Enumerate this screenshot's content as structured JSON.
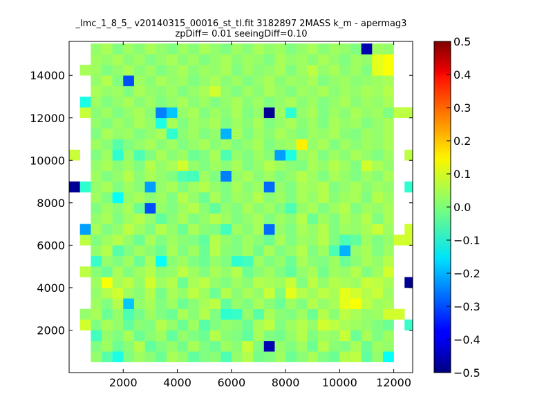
{
  "chart_data": {
    "type": "heatmap",
    "title": "_lmc_1_8_5_ v20140315_00016_st_tl.fit 3182897 2MASS k_m - apermag3",
    "subtitle": "zpDiff= 0.01 seeingDiff=0.10",
    "xlim": [
      0,
      12700
    ],
    "ylim": [
      0,
      15600
    ],
    "x_ticks": [
      "2000",
      "4000",
      "6000",
      "8000",
      "10000",
      "12000"
    ],
    "y_ticks": [
      "2000",
      "4000",
      "6000",
      "8000",
      "10000",
      "12000",
      "14000"
    ],
    "colorbar": {
      "colormap": "jet",
      "vmin": -0.5,
      "vmax": 0.5,
      "ticks": [
        "0.5",
        "0.4",
        "0.3",
        "0.2",
        "0.1",
        "0.0",
        "−0.1",
        "−0.2",
        "−0.3",
        "−0.4",
        "−0.5"
      ]
    },
    "grid": {
      "x_start": 0,
      "cell_width": 400,
      "n_cols": 32,
      "y_start": 0,
      "cell_height": 500,
      "n_rows": 31,
      "rows_bottom_to_top": [
        [
          null,
          null,
          null,
          null,
          null,
          null,
          null,
          null,
          null,
          null,
          null,
          null,
          null,
          null,
          null,
          null,
          null,
          null,
          null,
          null,
          null,
          null,
          null,
          null,
          null,
          null,
          null,
          null,
          null,
          null,
          null,
          null
        ],
        [
          null,
          null,
          0.02,
          -0.04,
          -0.1,
          0.0,
          0.03,
          0.01,
          -0.02,
          0.04,
          0.02,
          -0.03,
          0.0,
          0.01,
          -0.05,
          0.02,
          0.05,
          -0.01,
          0.0,
          0.03,
          -0.02,
          0.01,
          0.04,
          0.0,
          -0.02,
          0.05,
          0.06,
          -0.03,
          0.02,
          -0.12,
          null,
          null
        ],
        [
          null,
          null,
          0.0,
          0.03,
          -0.02,
          0.01,
          0.05,
          -0.03,
          0.0,
          0.02,
          -0.01,
          0.04,
          0.0,
          -0.02,
          0.03,
          0.01,
          0.07,
          0.0,
          -0.45,
          0.02,
          0.0,
          0.03,
          -0.02,
          0.05,
          0.01,
          0.0,
          0.04,
          -0.02,
          0.03,
          0.02,
          null,
          null
        ],
        [
          null,
          null,
          -0.06,
          0.02,
          0.0,
          0.04,
          -0.02,
          0.01,
          0.03,
          -0.03,
          0.02,
          0.0,
          -0.02,
          0.05,
          0.01,
          0.0,
          -0.03,
          0.04,
          0.0,
          -0.01,
          0.02,
          0.05,
          0.0,
          0.03,
          0.02,
          0.07,
          -0.02,
          0.04,
          0.0,
          0.03,
          null,
          null
        ],
        [
          null,
          0.08,
          0.0,
          0.04,
          0.02,
          -0.03,
          0.01,
          0.0,
          0.05,
          0.02,
          -0.02,
          0.03,
          -0.04,
          0.0,
          0.02,
          0.01,
          -0.02,
          0.04,
          0.06,
          0.0,
          0.03,
          0.05,
          0.02,
          0.08,
          0.06,
          0.04,
          0.03,
          0.02,
          0.0,
          -0.02,
          null,
          -0.07
        ],
        [
          null,
          0.02,
          0.04,
          -0.02,
          0.02,
          -0.05,
          -0.01,
          0.03,
          0.0,
          -0.02,
          0.04,
          0.01,
          0.05,
          0.0,
          -0.08,
          -0.07,
          0.02,
          -0.04,
          0.04,
          0.01,
          0.0,
          0.03,
          -0.02,
          0.05,
          0.01,
          0.06,
          0.04,
          0.02,
          0.03,
          0.08,
          0.08,
          null
        ],
        [
          null,
          null,
          0.03,
          0.0,
          0.05,
          -0.18,
          0.02,
          0.04,
          0.0,
          0.03,
          -0.02,
          0.01,
          0.04,
          0.06,
          -0.03,
          0.02,
          0.0,
          0.04,
          0.01,
          -0.02,
          0.03,
          0.0,
          0.05,
          0.02,
          0.04,
          0.1,
          0.12,
          0.06,
          0.03,
          0.04,
          null,
          null
        ],
        [
          null,
          null,
          0.02,
          0.05,
          0.08,
          0.03,
          0.01,
          0.05,
          -0.01,
          0.04,
          0.02,
          0.06,
          0.03,
          -0.02,
          0.05,
          0.01,
          0.04,
          0.02,
          0.07,
          0.0,
          0.1,
          0.05,
          0.03,
          0.06,
          0.04,
          0.1,
          0.08,
          0.05,
          0.07,
          0.03,
          null,
          null
        ],
        [
          null,
          null,
          0.03,
          0.12,
          0.04,
          0.06,
          0.02,
          0.08,
          0.03,
          0.05,
          -0.02,
          0.04,
          0.06,
          0.02,
          0.0,
          0.03,
          0.01,
          0.05,
          0.04,
          0.03,
          0.07,
          0.0,
          0.06,
          0.02,
          0.05,
          0.04,
          0.03,
          0.07,
          0.06,
          0.04,
          null,
          -0.48
        ],
        [
          null,
          0.06,
          0.01,
          -0.02,
          0.04,
          0.0,
          0.03,
          0.05,
          0.01,
          0.02,
          0.06,
          0.03,
          0.0,
          0.04,
          0.02,
          0.05,
          -0.02,
          0.01,
          0.03,
          0.0,
          -0.03,
          0.02,
          0.04,
          -0.01,
          0.03,
          0.02,
          0.05,
          0.0,
          0.03,
          0.08,
          null,
          null
        ],
        [
          null,
          null,
          -0.07,
          0.02,
          0.0,
          0.03,
          -0.02,
          0.04,
          -0.12,
          0.01,
          0.03,
          0.0,
          -0.02,
          0.02,
          0.0,
          -0.08,
          -0.06,
          0.03,
          0.0,
          0.02,
          -0.02,
          0.04,
          0.01,
          0.0,
          0.03,
          -0.02,
          0.01,
          0.04,
          0.02,
          0.05,
          null,
          null
        ],
        [
          null,
          null,
          0.02,
          0.05,
          -0.04,
          0.0,
          0.03,
          0.01,
          -0.02,
          0.04,
          0.0,
          0.03,
          -0.02,
          0.05,
          0.01,
          0.0,
          0.03,
          -0.01,
          0.04,
          0.0,
          0.02,
          0.05,
          0.0,
          0.03,
          -0.05,
          -0.2,
          0.02,
          0.04,
          0.0,
          0.03,
          null,
          null
        ],
        [
          null,
          0.06,
          0.0,
          0.03,
          0.05,
          0.02,
          -0.02,
          0.04,
          0.0,
          0.03,
          0.01,
          0.0,
          -0.03,
          0.05,
          0.02,
          0.0,
          0.03,
          0.01,
          -0.02,
          0.04,
          0.0,
          0.03,
          0.02,
          0.05,
          0.0,
          -0.05,
          -0.03,
          0.03,
          0.0,
          0.02,
          0.08,
          0.08
        ],
        [
          null,
          -0.22,
          0.04,
          0.0,
          0.02,
          0.06,
          0.03,
          0.0,
          0.05,
          0.02,
          -0.02,
          0.04,
          0.01,
          0.0,
          -0.06,
          0.03,
          0.01,
          0.04,
          -0.27,
          0.02,
          0.0,
          0.04,
          0.02,
          0.05,
          0.0,
          0.03,
          0.02,
          0.04,
          0.07,
          0.03,
          null,
          0.08
        ],
        [
          null,
          null,
          0.02,
          0.04,
          0.0,
          0.03,
          0.05,
          0.02,
          -0.03,
          0.01,
          0.04,
          0.0,
          0.02,
          0.05,
          0.03,
          0.0,
          0.02,
          0.04,
          0.0,
          0.03,
          0.01,
          0.05,
          -0.02,
          0.03,
          0.0,
          0.04,
          0.02,
          0.05,
          0.0,
          0.04,
          null,
          null
        ],
        [
          null,
          null,
          0.0,
          0.03,
          0.01,
          0.04,
          -0.02,
          -0.3,
          0.02,
          0.0,
          0.03,
          0.05,
          0.01,
          -0.03,
          0.02,
          0.0,
          0.04,
          0.01,
          0.03,
          0.0,
          -0.05,
          0.02,
          0.04,
          0.0,
          0.03,
          0.05,
          0.0,
          0.03,
          0.02,
          0.04,
          null,
          null
        ],
        [
          null,
          null,
          0.03,
          0.0,
          -0.12,
          0.02,
          0.04,
          0.01,
          0.03,
          0.0,
          0.05,
          0.02,
          -0.02,
          0.04,
          0.0,
          0.03,
          0.02,
          0.05,
          0.01,
          0.03,
          0.0,
          0.04,
          0.02,
          0.05,
          0.01,
          0.03,
          0.04,
          0.0,
          0.05,
          0.03,
          null,
          null
        ],
        [
          -0.48,
          -0.08,
          0.02,
          0.04,
          0.0,
          0.03,
          0.01,
          -0.22,
          0.02,
          0.04,
          0.0,
          0.03,
          0.05,
          0.02,
          0.0,
          0.04,
          0.01,
          0.03,
          -0.27,
          0.02,
          0.0,
          0.04,
          0.03,
          0.05,
          0.0,
          0.02,
          0.04,
          0.01,
          0.03,
          0.02,
          null,
          -0.08
        ],
        [
          null,
          null,
          0.03,
          0.0,
          0.02,
          0.05,
          0.01,
          0.04,
          0.02,
          0.0,
          -0.05,
          -0.06,
          0.03,
          0.0,
          -0.25,
          0.02,
          0.04,
          0.01,
          0.03,
          0.0,
          0.02,
          0.05,
          0.03,
          0.0,
          0.04,
          0.02,
          0.0,
          0.03,
          0.01,
          0.04,
          null,
          null
        ],
        [
          null,
          null,
          0.02,
          0.04,
          0.01,
          0.03,
          0.0,
          0.05,
          0.02,
          0.04,
          0.08,
          0.02,
          0.0,
          0.03,
          0.01,
          0.04,
          0.0,
          0.02,
          0.05,
          0.03,
          0.01,
          0.0,
          0.04,
          0.02,
          0.05,
          0.03,
          0.0,
          0.08,
          0.04,
          0.02,
          null,
          null
        ],
        [
          0.07,
          null,
          0.0,
          0.03,
          -0.08,
          0.02,
          -0.05,
          0.0,
          0.04,
          0.01,
          0.03,
          -0.02,
          0.0,
          0.04,
          -0.05,
          0.02,
          0.0,
          0.03,
          0.01,
          -0.22,
          -0.1,
          0.02,
          0.04,
          0.0,
          0.03,
          0.01,
          0.04,
          0.02,
          0.0,
          0.03,
          null,
          0.06
        ],
        [
          null,
          null,
          0.03,
          0.01,
          -0.04,
          0.0,
          0.02,
          0.04,
          0.01,
          0.03,
          0.0,
          0.02,
          0.04,
          0.01,
          0.03,
          0.0,
          0.02,
          0.04,
          0.0,
          0.02,
          0.03,
          0.14,
          0.02,
          0.04,
          0.0,
          0.03,
          0.01,
          0.03,
          0.02,
          0.04,
          null,
          null
        ],
        [
          null,
          null,
          0.0,
          0.04,
          0.02,
          0.03,
          0.0,
          0.02,
          0.04,
          -0.08,
          0.01,
          0.03,
          0.0,
          0.02,
          -0.2,
          0.04,
          0.0,
          0.03,
          0.01,
          0.04,
          0.02,
          0.0,
          0.03,
          0.02,
          0.04,
          0.01,
          0.0,
          0.03,
          0.02,
          0.04,
          null,
          null
        ],
        [
          null,
          null,
          0.02,
          0.0,
          0.03,
          0.01,
          0.04,
          0.02,
          -0.1,
          0.04,
          0.0,
          0.03,
          0.02,
          0.04,
          0.0,
          0.03,
          0.01,
          0.04,
          0.0,
          0.02,
          0.04,
          0.01,
          0.03,
          0.0,
          0.04,
          0.02,
          0.03,
          0.0,
          0.02,
          0.04,
          null,
          null
        ],
        [
          null,
          0.07,
          0.01,
          0.03,
          0.0,
          0.02,
          0.04,
          0.01,
          -0.25,
          -0.18,
          0.02,
          0.04,
          0.0,
          0.03,
          0.01,
          0.04,
          0.0,
          0.02,
          -0.48,
          0.03,
          -0.08,
          0.02,
          0.04,
          0.0,
          0.03,
          0.01,
          0.04,
          0.02,
          0.03,
          0.0,
          0.06,
          0.06
        ],
        [
          null,
          -0.1,
          0.03,
          0.0,
          0.02,
          0.04,
          0.01,
          0.03,
          0.0,
          0.02,
          0.04,
          0.01,
          0.03,
          0.0,
          0.02,
          0.04,
          0.01,
          0.03,
          0.0,
          0.02,
          0.04,
          0.01,
          0.03,
          0.0,
          0.02,
          0.04,
          0.01,
          0.03,
          0.02,
          0.04,
          null,
          null
        ],
        [
          null,
          null,
          0.04,
          0.02,
          0.03,
          0.0,
          0.04,
          0.02,
          0.01,
          0.03,
          0.0,
          0.02,
          0.04,
          0.08,
          0.02,
          0.0,
          0.03,
          0.01,
          0.04,
          0.02,
          0.0,
          0.03,
          0.02,
          0.04,
          0.01,
          0.03,
          0.02,
          0.04,
          0.03,
          0.05,
          null,
          null
        ],
        [
          null,
          null,
          0.02,
          0.05,
          0.0,
          -0.3,
          0.03,
          0.01,
          0.04,
          0.02,
          0.03,
          0.0,
          0.02,
          0.04,
          0.01,
          0.03,
          0.0,
          0.02,
          0.04,
          0.01,
          0.03,
          0.02,
          0.04,
          0.0,
          0.02,
          0.03,
          0.01,
          0.02,
          0.03,
          0.04,
          null,
          null
        ],
        [
          null,
          0.04,
          0.03,
          0.0,
          0.02,
          0.04,
          0.01,
          0.03,
          0.0,
          0.02,
          0.04,
          0.01,
          0.03,
          0.02,
          0.04,
          0.0,
          0.03,
          0.01,
          0.02,
          0.04,
          0.0,
          0.03,
          0.06,
          0.02,
          0.04,
          0.01,
          0.03,
          0.0,
          0.1,
          0.12,
          null,
          null
        ],
        [
          null,
          null,
          0.03,
          0.02,
          0.04,
          0.01,
          0.03,
          0.0,
          0.02,
          0.04,
          0.01,
          0.03,
          0.0,
          0.02,
          0.04,
          0.01,
          0.03,
          0.02,
          0.0,
          0.04,
          0.02,
          0.03,
          0.01,
          0.04,
          0.02,
          0.0,
          0.03,
          0.02,
          0.1,
          0.12,
          null,
          null
        ],
        [
          null,
          null,
          0.02,
          0.04,
          0.0,
          0.03,
          0.01,
          0.04,
          0.02,
          0.0,
          0.03,
          0.01,
          0.04,
          0.02,
          0.0,
          0.03,
          0.01,
          0.04,
          0.02,
          0.03,
          0.0,
          0.02,
          0.04,
          0.01,
          0.03,
          0.02,
          0.0,
          -0.45,
          0.03,
          0.02,
          null,
          null
        ]
      ]
    }
  }
}
